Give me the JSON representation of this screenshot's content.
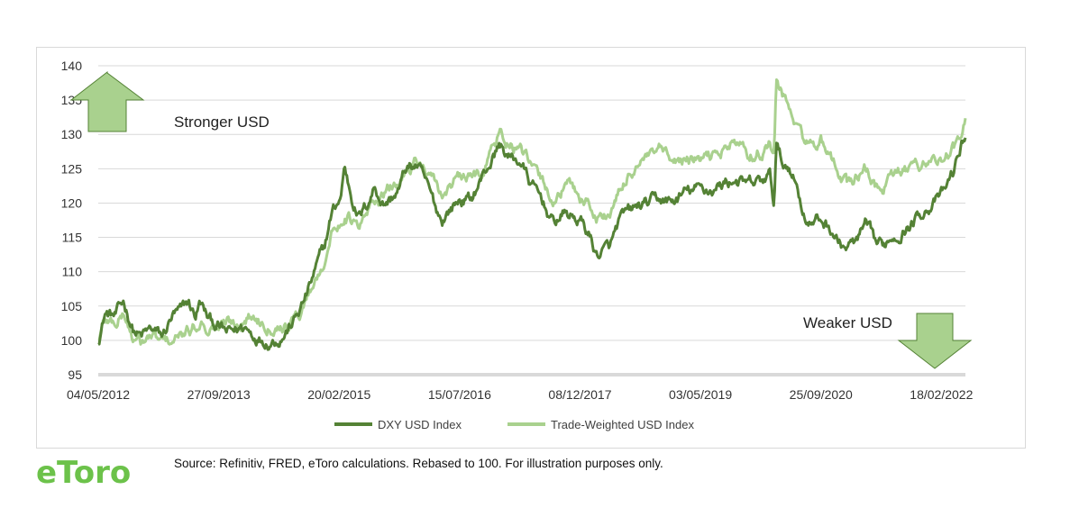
{
  "chart_data": {
    "type": "line",
    "title": "",
    "xlabel": "",
    "ylabel": "",
    "ylim": [
      95,
      140
    ],
    "yticks": [
      95,
      100,
      105,
      110,
      115,
      120,
      125,
      130,
      135,
      140
    ],
    "xlim": [
      "2012-05-04",
      "2022-05-31"
    ],
    "xticks": [
      "04/05/2012",
      "27/09/2013",
      "20/02/2015",
      "15/07/2016",
      "08/12/2017",
      "03/05/2019",
      "25/09/2020",
      "18/02/2022"
    ],
    "grid": "horizontal",
    "legend": "bottom-center",
    "series": [
      {
        "name": "DXY USD Index",
        "color": "#548235",
        "points": [
          [
            "2012-05-04",
            100.0
          ],
          [
            "2012-06-01",
            104.0
          ],
          [
            "2012-07-15",
            103.5
          ],
          [
            "2012-08-20",
            105.5
          ],
          [
            "2012-10-01",
            101.5
          ],
          [
            "2012-11-01",
            100.5
          ],
          [
            "2012-12-15",
            101.5
          ],
          [
            "2013-02-01",
            100.5
          ],
          [
            "2013-03-15",
            103.5
          ],
          [
            "2013-04-20",
            104.0
          ],
          [
            "2013-05-20",
            105.5
          ],
          [
            "2013-06-20",
            103.5
          ],
          [
            "2013-07-10",
            105.5
          ],
          [
            "2013-08-15",
            103.0
          ],
          [
            "2013-09-27",
            102.0
          ],
          [
            "2013-11-01",
            101.0
          ],
          [
            "2013-12-15",
            101.5
          ],
          [
            "2014-01-15",
            102.0
          ],
          [
            "2014-02-15",
            101.0
          ],
          [
            "2014-03-20",
            100.5
          ],
          [
            "2014-05-01",
            100.0
          ],
          [
            "2014-06-15",
            100.5
          ],
          [
            "2014-07-15",
            101.5
          ],
          [
            "2014-08-15",
            103.0
          ],
          [
            "2014-09-15",
            105.0
          ],
          [
            "2014-10-15",
            107.5
          ],
          [
            "2014-11-20",
            111.0
          ],
          [
            "2014-12-20",
            113.5
          ],
          [
            "2015-01-20",
            118.5
          ],
          [
            "2015-03-01",
            121.0
          ],
          [
            "2015-03-13",
            125.5
          ],
          [
            "2015-04-15",
            121.0
          ],
          [
            "2015-05-15",
            118.0
          ],
          [
            "2015-06-15",
            119.5
          ],
          [
            "2015-07-20",
            122.5
          ],
          [
            "2015-08-25",
            120.0
          ],
          [
            "2015-09-25",
            120.5
          ],
          [
            "2015-11-01",
            122.0
          ],
          [
            "2015-12-01",
            125.0
          ],
          [
            "2016-01-15",
            125.5
          ],
          [
            "2016-02-15",
            123.5
          ],
          [
            "2016-04-01",
            119.5
          ],
          [
            "2016-05-01",
            117.5
          ],
          [
            "2016-06-01",
            119.0
          ],
          [
            "2016-07-15",
            120.5
          ],
          [
            "2016-09-01",
            120.5
          ],
          [
            "2016-10-15",
            123.5
          ],
          [
            "2016-12-01",
            126.5
          ],
          [
            "2017-01-01",
            128.5
          ],
          [
            "2017-02-15",
            126.5
          ],
          [
            "2017-04-01",
            126.0
          ],
          [
            "2017-05-15",
            122.5
          ],
          [
            "2017-07-01",
            120.5
          ],
          [
            "2017-08-15",
            117.0
          ],
          [
            "2017-10-01",
            118.5
          ],
          [
            "2017-11-01",
            118.0
          ],
          [
            "2017-12-08",
            117.5
          ],
          [
            "2018-01-15",
            115.5
          ],
          [
            "2018-02-15",
            112.5
          ],
          [
            "2018-03-15",
            113.0
          ],
          [
            "2018-04-15",
            113.5
          ],
          [
            "2018-05-20",
            117.0
          ],
          [
            "2018-07-01",
            118.5
          ],
          [
            "2018-08-15",
            119.5
          ],
          [
            "2018-10-01",
            120.0
          ],
          [
            "2018-11-15",
            120.5
          ],
          [
            "2019-01-01",
            120.0
          ],
          [
            "2019-03-01",
            121.5
          ],
          [
            "2019-05-03",
            122.0
          ],
          [
            "2019-07-01",
            122.0
          ],
          [
            "2019-08-15",
            123.0
          ],
          [
            "2019-10-01",
            123.5
          ],
          [
            "2019-11-15",
            122.5
          ],
          [
            "2020-01-15",
            123.0
          ],
          [
            "2020-02-20",
            124.0
          ],
          [
            "2020-03-10",
            120.0
          ],
          [
            "2020-03-20",
            128.5
          ],
          [
            "2020-04-15",
            125.5
          ],
          [
            "2020-05-15",
            125.5
          ],
          [
            "2020-06-15",
            122.5
          ],
          [
            "2020-07-15",
            118.5
          ],
          [
            "2020-08-15",
            117.0
          ],
          [
            "2020-09-25",
            117.5
          ],
          [
            "2020-11-01",
            116.5
          ],
          [
            "2020-12-15",
            114.0
          ],
          [
            "2021-01-15",
            113.5
          ],
          [
            "2021-03-01",
            114.5
          ],
          [
            "2021-04-01",
            116.5
          ],
          [
            "2021-05-15",
            114.0
          ],
          [
            "2021-06-15",
            113.5
          ],
          [
            "2021-07-15",
            115.0
          ],
          [
            "2021-09-01",
            116.0
          ],
          [
            "2021-10-15",
            117.0
          ],
          [
            "2021-12-01",
            119.0
          ],
          [
            "2022-01-15",
            120.0
          ],
          [
            "2022-02-18",
            121.0
          ],
          [
            "2022-03-15",
            122.5
          ],
          [
            "2022-04-15",
            125.0
          ],
          [
            "2022-05-15",
            128.5
          ],
          [
            "2022-05-31",
            130.0
          ]
        ]
      },
      {
        "name": "Trade-Weighted USD Index",
        "color": "#a9d18e",
        "points": [
          [
            "2012-05-04",
            100.0
          ],
          [
            "2012-06-01",
            103.0
          ],
          [
            "2012-07-15",
            102.5
          ],
          [
            "2012-08-20",
            104.0
          ],
          [
            "2012-10-01",
            100.0
          ],
          [
            "2012-11-01",
            99.5
          ],
          [
            "2012-12-15",
            100.5
          ],
          [
            "2013-02-01",
            99.5
          ],
          [
            "2013-03-15",
            100.0
          ],
          [
            "2013-04-20",
            100.5
          ],
          [
            "2013-05-20",
            101.0
          ],
          [
            "2013-06-20",
            102.0
          ],
          [
            "2013-07-10",
            103.0
          ],
          [
            "2013-08-15",
            102.0
          ],
          [
            "2013-09-27",
            102.0
          ],
          [
            "2013-11-01",
            102.5
          ],
          [
            "2013-12-15",
            102.5
          ],
          [
            "2014-01-15",
            103.5
          ],
          [
            "2014-02-15",
            103.5
          ],
          [
            "2014-03-20",
            103.0
          ],
          [
            "2014-05-01",
            102.5
          ],
          [
            "2014-06-15",
            102.5
          ],
          [
            "2014-07-15",
            102.5
          ],
          [
            "2014-08-15",
            103.0
          ],
          [
            "2014-09-15",
            104.5
          ],
          [
            "2014-10-15",
            107.0
          ],
          [
            "2014-11-20",
            109.5
          ],
          [
            "2014-12-20",
            112.0
          ],
          [
            "2015-01-20",
            115.5
          ],
          [
            "2015-03-01",
            117.5
          ],
          [
            "2015-03-13",
            118.5
          ],
          [
            "2015-04-15",
            117.5
          ],
          [
            "2015-05-15",
            116.0
          ],
          [
            "2015-06-15",
            118.0
          ],
          [
            "2015-07-20",
            120.5
          ],
          [
            "2015-08-25",
            121.0
          ],
          [
            "2015-09-25",
            122.0
          ],
          [
            "2015-11-01",
            123.0
          ],
          [
            "2015-12-01",
            125.0
          ],
          [
            "2016-01-15",
            126.5
          ],
          [
            "2016-02-15",
            124.5
          ],
          [
            "2016-04-01",
            122.5
          ],
          [
            "2016-05-01",
            121.0
          ],
          [
            "2016-06-01",
            122.5
          ],
          [
            "2016-07-15",
            123.5
          ],
          [
            "2016-09-01",
            123.5
          ],
          [
            "2016-10-15",
            124.5
          ],
          [
            "2016-12-01",
            128.0
          ],
          [
            "2017-01-01",
            130.0
          ],
          [
            "2017-02-15",
            128.5
          ],
          [
            "2017-04-01",
            127.5
          ],
          [
            "2017-05-15",
            125.0
          ],
          [
            "2017-07-01",
            123.0
          ],
          [
            "2017-08-15",
            120.5
          ],
          [
            "2017-10-01",
            122.0
          ],
          [
            "2017-11-01",
            122.5
          ],
          [
            "2017-12-08",
            121.0
          ],
          [
            "2018-01-15",
            120.0
          ],
          [
            "2018-02-15",
            118.0
          ],
          [
            "2018-03-15",
            118.0
          ],
          [
            "2018-04-15",
            118.5
          ],
          [
            "2018-05-20",
            121.0
          ],
          [
            "2018-07-01",
            124.0
          ],
          [
            "2018-08-15",
            126.0
          ],
          [
            "2018-10-01",
            126.5
          ],
          [
            "2018-11-15",
            127.5
          ],
          [
            "2019-01-01",
            125.5
          ],
          [
            "2019-03-01",
            126.5
          ],
          [
            "2019-05-03",
            126.0
          ],
          [
            "2019-07-01",
            127.0
          ],
          [
            "2019-08-15",
            128.0
          ],
          [
            "2019-10-01",
            129.0
          ],
          [
            "2019-11-15",
            127.0
          ],
          [
            "2020-01-15",
            127.5
          ],
          [
            "2020-02-20",
            128.5
          ],
          [
            "2020-03-10",
            127.5
          ],
          [
            "2020-03-20",
            138.0
          ],
          [
            "2020-04-15",
            135.5
          ],
          [
            "2020-05-15",
            133.5
          ],
          [
            "2020-06-15",
            131.0
          ],
          [
            "2020-07-15",
            129.0
          ],
          [
            "2020-08-15",
            128.5
          ],
          [
            "2020-09-25",
            129.0
          ],
          [
            "2020-11-01",
            126.0
          ],
          [
            "2020-12-15",
            124.5
          ],
          [
            "2021-01-15",
            122.5
          ],
          [
            "2021-03-01",
            124.0
          ],
          [
            "2021-04-01",
            125.0
          ],
          [
            "2021-05-15",
            122.5
          ],
          [
            "2021-06-15",
            122.0
          ],
          [
            "2021-07-15",
            123.5
          ],
          [
            "2021-09-01",
            124.5
          ],
          [
            "2021-10-15",
            125.0
          ],
          [
            "2021-12-01",
            126.0
          ],
          [
            "2022-01-15",
            126.5
          ],
          [
            "2022-02-18",
            126.0
          ],
          [
            "2022-03-15",
            127.0
          ],
          [
            "2022-04-15",
            128.0
          ],
          [
            "2022-05-15",
            129.5
          ],
          [
            "2022-05-31",
            131.5
          ]
        ]
      }
    ],
    "annotations": [
      {
        "text": "Stronger USD",
        "arrow": "up",
        "position": "top-left"
      },
      {
        "text": "Weaker USD",
        "arrow": "down",
        "position": "bottom-right"
      }
    ]
  },
  "footer": {
    "logo_text": "eToro",
    "source": "Source: Refinitiv, FRED, eToro calculations. Rebased to 100. For illustration purposes only."
  },
  "colors": {
    "grid": "#d9d9d9",
    "axis": "#d9d9d9",
    "arrow_fill": "#a9d18e",
    "arrow_stroke": "#548235",
    "logo": "#6cc24a"
  }
}
